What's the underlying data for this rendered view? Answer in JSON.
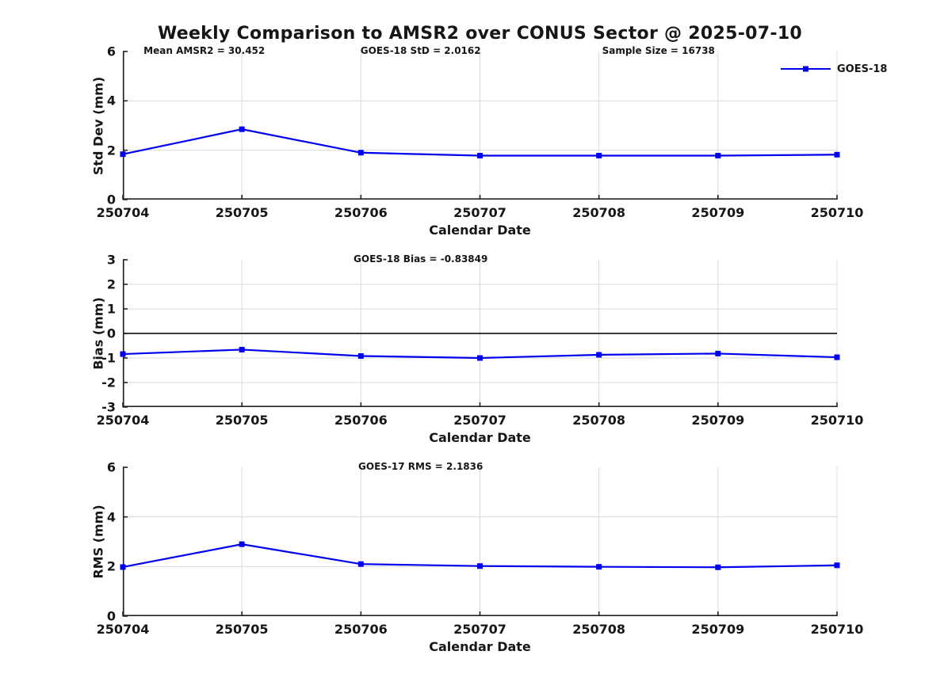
{
  "title": "Weekly Comparison to AMSR2 over CONUS Sector @ 2025-07-10",
  "legend": {
    "position": "top-right",
    "items": [
      {
        "label": "GOES-18",
        "marker": "square",
        "color": "#0000ee"
      }
    ]
  },
  "colors": {
    "line": "#0000ee",
    "grid": "#d9d9d9",
    "axis": "#222222",
    "zero_line": "#3c3c3c"
  },
  "chart_data": [
    {
      "type": "line",
      "panel": "Std Dev",
      "annotations": [
        {
          "text": "Mean AMSR2 = 30.452"
        },
        {
          "text": "GOES-18 StD = 2.0162"
        },
        {
          "text": "Sample Size = 16738"
        }
      ],
      "ylabel": "Std Dev (mm)",
      "xlabel": "Calendar Date",
      "categories": [
        "250704",
        "250705",
        "250706",
        "250707",
        "250708",
        "250709",
        "250710"
      ],
      "series": [
        {
          "name": "GOES-18",
          "values": [
            1.84,
            2.85,
            1.9,
            1.78,
            1.78,
            1.78,
            1.82
          ]
        }
      ],
      "ylim": [
        0,
        6
      ],
      "yticks": [
        0,
        2,
        4,
        6
      ],
      "zero_line": false,
      "grid": true,
      "legend_position": "top-right-outside"
    },
    {
      "type": "line",
      "panel": "Bias",
      "annotations": [
        {
          "text": "GOES-18 Bias  = -0.83849"
        }
      ],
      "ylabel": "Bias (mm)",
      "xlabel": "Calendar Date",
      "categories": [
        "250704",
        "250705",
        "250706",
        "250707",
        "250708",
        "250709",
        "250710"
      ],
      "series": [
        {
          "name": "GOES-18",
          "values": [
            -0.84,
            -0.66,
            -0.92,
            -1.0,
            -0.87,
            -0.82,
            -0.97
          ]
        }
      ],
      "ylim": [
        -3,
        3
      ],
      "yticks": [
        -3,
        -2,
        -1,
        0,
        1,
        2,
        3
      ],
      "zero_line": true,
      "grid": true
    },
    {
      "type": "line",
      "panel": "RMS",
      "annotations": [
        {
          "text": "GOES-17 RMS = 2.1836"
        }
      ],
      "ylabel": "RMS (mm)",
      "xlabel": "Calendar Date",
      "categories": [
        "250704",
        "250705",
        "250706",
        "250707",
        "250708",
        "250709",
        "250710"
      ],
      "series": [
        {
          "name": "GOES-18",
          "values": [
            1.98,
            2.9,
            2.1,
            2.02,
            1.99,
            1.97,
            2.05
          ]
        }
      ],
      "ylim": [
        0,
        6
      ],
      "yticks": [
        0,
        2,
        4,
        6
      ],
      "zero_line": false,
      "grid": true
    }
  ]
}
